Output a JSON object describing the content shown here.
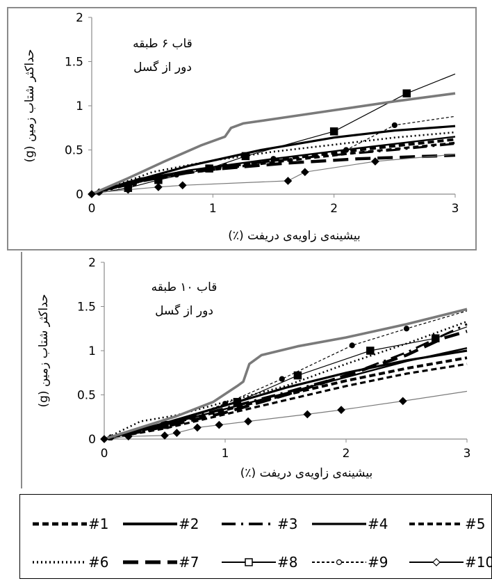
{
  "colors": {
    "series_main": "#000000",
    "series_gray": "#7a7a7a",
    "frame": "#8a8a8a"
  },
  "legend": [
    {
      "id": "#1",
      "label": "#1",
      "style": "dash-bold"
    },
    {
      "id": "#2",
      "label": "#2",
      "style": "solid-thick"
    },
    {
      "id": "#3",
      "label": "#3",
      "style": "longdash-dot"
    },
    {
      "id": "#4",
      "label": "#4",
      "style": "solid-thick2"
    },
    {
      "id": "#5",
      "label": "#5",
      "style": "dash-medium"
    },
    {
      "id": "#6",
      "label": "#6",
      "style": "dotted"
    },
    {
      "id": "#7",
      "label": "#7",
      "style": "longdash-heavy"
    },
    {
      "id": "#8",
      "label": "#8",
      "style": "solid-square"
    },
    {
      "id": "#9",
      "label": "#9",
      "style": "dashed-circle"
    },
    {
      "id": "#10",
      "label": "#10",
      "style": "solid-diamond"
    }
  ],
  "chart_data": [
    {
      "type": "line",
      "annotation_line1": "قاب ۶ طبقه",
      "annotation_line2": "دور از گسل",
      "xlabel": "بیشینه‌ی زاویه‌ی دریفت (٪)",
      "ylabel": "حداکثر شتاب زمین (g)",
      "xlim": [
        0,
        3
      ],
      "ylim": [
        0,
        2
      ],
      "xticks": [
        "0",
        "1",
        "2",
        "3"
      ],
      "yticks": [
        "0",
        "0.5",
        "1",
        "1.5",
        "2"
      ],
      "series": [
        {
          "id": "#1",
          "style": "dash-bold",
          "x": [
            0,
            0.3,
            0.8,
            1.5,
            2.2,
            3
          ],
          "y": [
            0,
            0.12,
            0.26,
            0.38,
            0.5,
            0.62
          ]
        },
        {
          "id": "#2",
          "style": "solid-thick",
          "x": [
            0,
            0.3,
            0.8,
            1.4,
            2.0,
            2.5,
            3
          ],
          "y": [
            0,
            0.13,
            0.32,
            0.5,
            0.64,
            0.72,
            0.77
          ]
        },
        {
          "id": "#3",
          "style": "longdash-dot",
          "x": [
            0,
            0.4,
            1.0,
            1.8,
            2.5,
            3
          ],
          "y": [
            0,
            0.14,
            0.3,
            0.42,
            0.5,
            0.57
          ]
        },
        {
          "id": "#4",
          "style": "solid-thick2",
          "x": [
            0,
            0.3,
            0.8,
            1.5,
            2.2,
            3
          ],
          "y": [
            0,
            0.14,
            0.27,
            0.4,
            0.52,
            0.65
          ]
        },
        {
          "id": "#5",
          "style": "dash-medium",
          "x": [
            0,
            0.3,
            0.8,
            1.5,
            2.2,
            3
          ],
          "y": [
            0,
            0.12,
            0.24,
            0.36,
            0.47,
            0.58
          ]
        },
        {
          "id": "#6",
          "style": "dotted",
          "x": [
            0,
            0.5,
            1.0,
            1.5,
            2.0,
            2.5,
            3
          ],
          "y": [
            0,
            0.25,
            0.38,
            0.48,
            0.56,
            0.64,
            0.7
          ]
        },
        {
          "id": "#7",
          "style": "longdash-heavy",
          "x": [
            0,
            0.4,
            1.0,
            1.6,
            2.2,
            2.8,
            3
          ],
          "y": [
            0,
            0.17,
            0.28,
            0.35,
            0.4,
            0.43,
            0.44
          ]
        },
        {
          "id": "#8",
          "style": "solid-square",
          "x": [
            0,
            0.3,
            0.55,
            0.97,
            1.27,
            2.0,
            2.6,
            3
          ],
          "y": [
            0,
            0.07,
            0.16,
            0.29,
            0.43,
            0.71,
            1.14,
            1.36
          ]
        },
        {
          "id": "#9",
          "style": "dashed-circle",
          "x": [
            0,
            0.35,
            0.7,
            1.1,
            1.5,
            2.1,
            2.5,
            3
          ],
          "y": [
            0,
            0.12,
            0.22,
            0.32,
            0.4,
            0.5,
            0.78,
            0.88
          ]
        },
        {
          "id": "#10",
          "style": "solid-diamond",
          "x": [
            0,
            0.06,
            0.3,
            0.55,
            0.75,
            1.62,
            1.76,
            2.34,
            3
          ],
          "y": [
            0,
            0.02,
            0.05,
            0.08,
            0.1,
            0.15,
            0.25,
            0.37,
            0.45
          ]
        },
        {
          "id": "gray",
          "style": "gray-thick",
          "x": [
            0,
            0.3,
            0.6,
            0.9,
            1.1,
            1.15,
            1.25,
            1.5,
            2.0,
            2.5,
            3
          ],
          "y": [
            0,
            0.18,
            0.37,
            0.55,
            0.65,
            0.75,
            0.8,
            0.85,
            0.95,
            1.05,
            1.14
          ]
        }
      ]
    },
    {
      "type": "line",
      "annotation_line1": "قاب ۱۰ طبقه",
      "annotation_line2": "دور از گسل",
      "xlabel": "بیشینه‌ی زاویه‌ی دریفت (٪)",
      "ylabel": "حداکثر شتاب زمین (g)",
      "xlim": [
        0,
        3
      ],
      "ylim": [
        0,
        2
      ],
      "xticks": [
        "0",
        "1",
        "2",
        "3"
      ],
      "yticks": [
        "0",
        "0.5",
        "1",
        "1.5",
        "2"
      ],
      "series": [
        {
          "id": "#1",
          "style": "dash-bold",
          "x": [
            0,
            0.5,
            1.0,
            1.5,
            2.0,
            2.5,
            3
          ],
          "y": [
            0,
            0.16,
            0.33,
            0.5,
            0.66,
            0.8,
            0.92
          ]
        },
        {
          "id": "#2",
          "style": "solid-thick",
          "x": [
            0,
            0.5,
            1.0,
            1.5,
            2.0,
            2.5,
            3
          ],
          "y": [
            0,
            0.18,
            0.38,
            0.58,
            0.75,
            0.89,
            1.0
          ]
        },
        {
          "id": "#3",
          "style": "longdash-dot",
          "x": [
            0,
            0.5,
            1.0,
            1.5,
            2.0,
            2.5,
            3
          ],
          "y": [
            0,
            0.17,
            0.35,
            0.53,
            0.72,
            0.98,
            1.3
          ]
        },
        {
          "id": "#4",
          "style": "solid-thick2",
          "x": [
            0,
            0.5,
            1.0,
            1.5,
            2.0,
            2.5,
            3
          ],
          "y": [
            0,
            0.16,
            0.34,
            0.52,
            0.7,
            0.88,
            1.03
          ]
        },
        {
          "id": "#5",
          "style": "dash-medium",
          "x": [
            0,
            0.5,
            1.0,
            1.5,
            2.0,
            2.5,
            3
          ],
          "y": [
            0,
            0.12,
            0.28,
            0.44,
            0.6,
            0.74,
            0.85
          ]
        },
        {
          "id": "#6",
          "style": "dotted",
          "x": [
            0,
            0.3,
            0.6,
            1.0,
            1.5,
            2.0,
            2.5,
            3
          ],
          "y": [
            0,
            0.2,
            0.27,
            0.42,
            0.6,
            0.85,
            1.08,
            1.33
          ]
        },
        {
          "id": "#7",
          "style": "longdash-heavy",
          "x": [
            0,
            0.5,
            1.0,
            1.5,
            2.0,
            2.5,
            2.8,
            3
          ],
          "y": [
            0,
            0.14,
            0.3,
            0.5,
            0.72,
            0.95,
            1.14,
            1.22
          ]
        },
        {
          "id": "#8",
          "style": "solid-square",
          "x": [
            0,
            0.5,
            1.1,
            1.6,
            2.2,
            2.74,
            3
          ],
          "y": [
            0,
            0.16,
            0.42,
            0.72,
            1.0,
            1.14,
            1.27
          ]
        },
        {
          "id": "#9",
          "style": "dashed-circle",
          "x": [
            0,
            0.5,
            1.0,
            1.47,
            2.05,
            2.5,
            3
          ],
          "y": [
            0,
            0.16,
            0.4,
            0.68,
            1.06,
            1.25,
            1.45
          ]
        },
        {
          "id": "#10",
          "style": "solid-diamond",
          "x": [
            0,
            0.05,
            0.2,
            0.5,
            0.6,
            0.77,
            0.95,
            1.19,
            1.68,
            1.96,
            2.47,
            3
          ],
          "y": [
            0,
            0.01,
            0.03,
            0.04,
            0.07,
            0.13,
            0.16,
            0.2,
            0.28,
            0.33,
            0.43,
            0.54
          ]
        },
        {
          "id": "gray",
          "style": "gray-thick",
          "x": [
            0,
            0.3,
            0.6,
            0.9,
            1.1,
            1.15,
            1.2,
            1.3,
            1.6,
            2.0,
            2.5,
            3
          ],
          "y": [
            0,
            0.13,
            0.26,
            0.42,
            0.6,
            0.65,
            0.85,
            0.95,
            1.05,
            1.15,
            1.3,
            1.47
          ]
        }
      ]
    }
  ]
}
